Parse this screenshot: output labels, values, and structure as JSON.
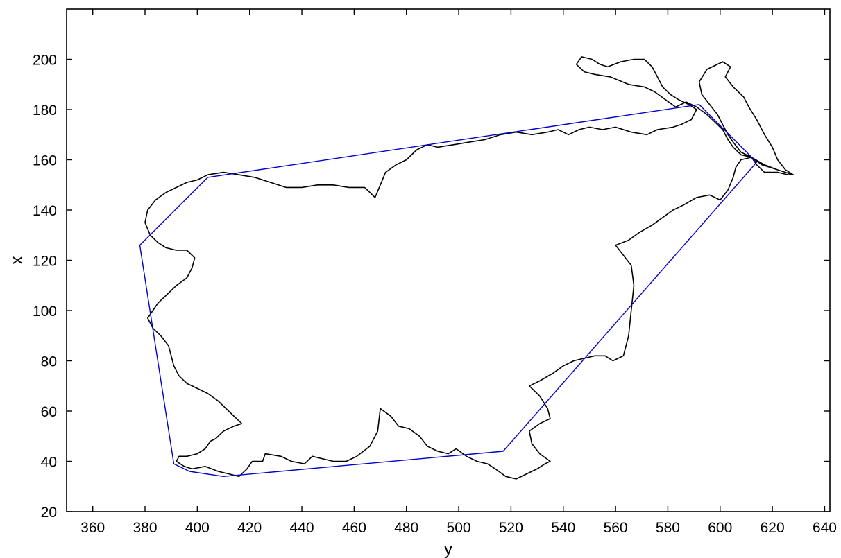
{
  "chart_data": {
    "type": "line",
    "title": "",
    "xlabel": "y",
    "ylabel": "x",
    "xlim": [
      350,
      642
    ],
    "ylim": [
      20,
      220
    ],
    "xticks": [
      360,
      380,
      400,
      420,
      440,
      460,
      480,
      500,
      520,
      540,
      560,
      580,
      600,
      620,
      640
    ],
    "yticks": [
      20,
      40,
      60,
      80,
      100,
      120,
      140,
      160,
      180,
      200
    ],
    "grid": false,
    "legend": "none",
    "colors": {
      "boundary": "#000000",
      "hull": "#0000cc",
      "axes": "#000000",
      "background": "#ffffff"
    },
    "series": [
      {
        "color": "#000000",
        "closed": true,
        "points": [
          [
            398,
            37
          ],
          [
            403,
            38
          ],
          [
            408,
            36
          ],
          [
            412,
            35
          ],
          [
            416,
            34
          ],
          [
            419,
            37
          ],
          [
            421,
            40
          ],
          [
            425,
            40
          ],
          [
            426,
            43
          ],
          [
            432,
            42
          ],
          [
            436,
            40
          ],
          [
            441,
            39
          ],
          [
            444,
            42
          ],
          [
            448,
            41
          ],
          [
            452,
            40
          ],
          [
            457,
            40
          ],
          [
            461,
            42
          ],
          [
            466,
            46
          ],
          [
            469,
            52
          ],
          [
            470,
            61
          ],
          [
            474,
            58
          ],
          [
            477,
            54
          ],
          [
            481,
            53
          ],
          [
            485,
            50
          ],
          [
            488,
            46
          ],
          [
            492,
            44
          ],
          [
            496,
            43
          ],
          [
            499,
            45
          ],
          [
            503,
            42
          ],
          [
            507,
            40
          ],
          [
            511,
            39
          ],
          [
            514,
            37
          ],
          [
            518,
            34
          ],
          [
            522,
            33
          ],
          [
            526,
            35
          ],
          [
            530,
            37
          ],
          [
            533,
            39
          ],
          [
            535,
            40
          ],
          [
            531,
            43
          ],
          [
            528,
            47
          ],
          [
            527,
            52
          ],
          [
            531,
            55
          ],
          [
            535,
            57
          ],
          [
            534,
            61
          ],
          [
            531,
            66
          ],
          [
            527,
            70
          ],
          [
            531,
            72
          ],
          [
            536,
            75
          ],
          [
            540,
            78
          ],
          [
            544,
            80
          ],
          [
            548,
            81
          ],
          [
            552,
            82
          ],
          [
            556,
            82
          ],
          [
            559,
            80
          ],
          [
            563,
            82
          ],
          [
            565,
            90
          ],
          [
            566,
            100
          ],
          [
            567,
            110
          ],
          [
            566,
            118
          ],
          [
            563,
            122
          ],
          [
            560,
            126
          ],
          [
            565,
            128
          ],
          [
            569,
            131
          ],
          [
            574,
            134
          ],
          [
            578,
            137
          ],
          [
            582,
            140
          ],
          [
            586,
            142
          ],
          [
            591,
            145
          ],
          [
            596,
            146
          ],
          [
            600,
            144
          ],
          [
            603,
            148
          ],
          [
            605,
            153
          ],
          [
            606,
            157
          ],
          [
            608,
            160
          ],
          [
            612,
            161
          ],
          [
            614,
            158
          ],
          [
            617,
            155
          ],
          [
            622,
            155
          ],
          [
            626,
            154
          ],
          [
            628,
            154
          ],
          [
            622,
            156
          ],
          [
            616,
            158
          ],
          [
            612,
            161
          ],
          [
            608,
            163
          ],
          [
            605,
            167
          ],
          [
            603,
            170
          ],
          [
            601,
            174
          ],
          [
            599,
            178
          ],
          [
            596,
            182
          ],
          [
            593,
            186
          ],
          [
            592,
            191
          ],
          [
            595,
            196
          ],
          [
            601,
            199
          ],
          [
            604,
            197
          ],
          [
            602,
            193
          ],
          [
            605,
            189
          ],
          [
            609,
            185
          ],
          [
            611,
            181
          ],
          [
            614,
            176
          ],
          [
            617,
            170
          ],
          [
            620,
            165
          ],
          [
            622,
            160
          ],
          [
            625,
            156
          ],
          [
            628,
            154
          ],
          [
            622,
            156
          ],
          [
            617,
            158
          ],
          [
            612,
            161
          ],
          [
            608,
            162
          ],
          [
            605,
            165
          ],
          [
            603,
            168
          ],
          [
            601,
            172
          ],
          [
            598,
            175
          ],
          [
            595,
            178
          ],
          [
            591,
            181
          ],
          [
            587,
            183
          ],
          [
            583,
            181
          ],
          [
            579,
            184
          ],
          [
            575,
            187
          ],
          [
            571,
            189
          ],
          [
            565,
            190
          ],
          [
            558,
            193
          ],
          [
            552,
            194
          ],
          [
            548,
            195
          ],
          [
            545,
            198
          ],
          [
            547,
            201
          ],
          [
            551,
            200
          ],
          [
            554,
            198
          ],
          [
            557,
            197
          ],
          [
            562,
            199
          ],
          [
            567,
            200
          ],
          [
            571,
            200
          ],
          [
            574,
            197
          ],
          [
            576,
            193
          ],
          [
            578,
            189
          ],
          [
            581,
            186
          ],
          [
            584,
            184
          ],
          [
            588,
            182
          ],
          [
            591,
            180
          ],
          [
            589,
            176
          ],
          [
            585,
            174
          ],
          [
            582,
            173
          ],
          [
            576,
            172
          ],
          [
            572,
            170
          ],
          [
            566,
            171
          ],
          [
            560,
            173
          ],
          [
            555,
            172
          ],
          [
            550,
            173
          ],
          [
            546,
            172
          ],
          [
            542,
            170
          ],
          [
            538,
            172
          ],
          [
            534,
            171
          ],
          [
            528,
            170
          ],
          [
            522,
            171
          ],
          [
            516,
            170
          ],
          [
            510,
            168
          ],
          [
            504,
            167
          ],
          [
            498,
            166
          ],
          [
            492,
            165
          ],
          [
            488,
            166
          ],
          [
            484,
            164
          ],
          [
            480,
            160
          ],
          [
            476,
            158
          ],
          [
            472,
            155
          ],
          [
            470,
            150
          ],
          [
            468,
            145
          ],
          [
            466,
            147
          ],
          [
            464,
            149
          ],
          [
            458,
            149
          ],
          [
            452,
            150
          ],
          [
            446,
            150
          ],
          [
            440,
            149
          ],
          [
            434,
            149
          ],
          [
            428,
            151
          ],
          [
            422,
            153
          ],
          [
            416,
            154
          ],
          [
            410,
            155
          ],
          [
            404,
            154
          ],
          [
            400,
            152
          ],
          [
            396,
            151
          ],
          [
            392,
            149
          ],
          [
            388,
            147
          ],
          [
            384,
            144
          ],
          [
            381,
            140
          ],
          [
            380,
            135
          ],
          [
            382,
            130
          ],
          [
            385,
            127
          ],
          [
            388,
            125
          ],
          [
            392,
            124
          ],
          [
            396,
            124
          ],
          [
            399,
            121
          ],
          [
            398,
            117
          ],
          [
            396,
            113
          ],
          [
            392,
            110
          ],
          [
            388,
            106
          ],
          [
            385,
            103
          ],
          [
            383,
            100
          ],
          [
            381,
            97
          ],
          [
            383,
            93
          ],
          [
            386,
            90
          ],
          [
            389,
            86
          ],
          [
            390,
            82
          ],
          [
            391,
            78
          ],
          [
            393,
            74
          ],
          [
            396,
            71
          ],
          [
            400,
            69
          ],
          [
            404,
            67
          ],
          [
            408,
            64
          ],
          [
            411,
            61
          ],
          [
            414,
            58
          ],
          [
            417,
            55
          ],
          [
            414,
            54
          ],
          [
            410,
            52
          ],
          [
            407,
            49
          ],
          [
            405,
            48
          ],
          [
            403,
            45
          ],
          [
            400,
            43
          ],
          [
            396,
            42
          ],
          [
            393,
            42
          ],
          [
            392,
            40
          ],
          [
            395,
            38
          ]
        ]
      },
      {
        "color": "#0000cc",
        "closed": true,
        "points": [
          [
            378,
            126
          ],
          [
            404,
            153
          ],
          [
            592,
            182
          ],
          [
            614,
            159
          ],
          [
            517,
            44
          ],
          [
            410,
            34
          ],
          [
            397,
            36
          ],
          [
            391,
            39
          ]
        ]
      }
    ]
  }
}
